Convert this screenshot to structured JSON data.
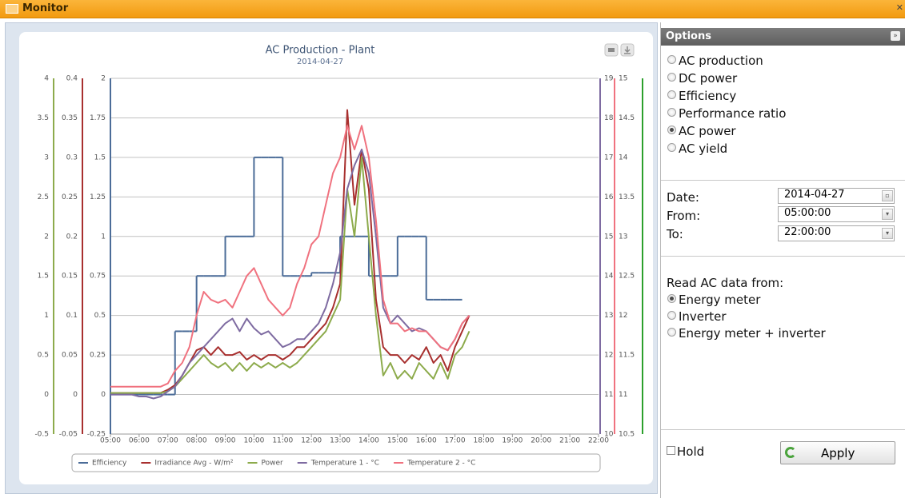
{
  "window": {
    "title": "Monitor"
  },
  "chart_data": {
    "type": "line",
    "title": "AC Production - Plant",
    "subtitle": "2014-04-27",
    "xlim": [
      "05:00",
      "22:00"
    ],
    "xticks": [
      "05:00",
      "06:00",
      "07:00",
      "08:00",
      "09:00",
      "10:00",
      "11:00",
      "12:00",
      "13:00",
      "14:00",
      "15:00",
      "16:00",
      "17:00",
      "18:00",
      "19:00",
      "20:00",
      "21:00",
      "22:00"
    ],
    "grid": true,
    "x": [
      "05:00",
      "05:15",
      "05:30",
      "05:45",
      "06:00",
      "06:15",
      "06:30",
      "06:45",
      "07:00",
      "07:15",
      "07:30",
      "07:45",
      "08:00",
      "08:15",
      "08:30",
      "08:45",
      "09:00",
      "09:15",
      "09:30",
      "09:45",
      "10:00",
      "10:15",
      "10:30",
      "10:45",
      "11:00",
      "11:15",
      "11:30",
      "11:45",
      "12:00",
      "12:15",
      "12:30",
      "12:45",
      "13:00",
      "13:15",
      "13:30",
      "13:45",
      "14:00",
      "14:15",
      "14:30",
      "14:45",
      "15:00",
      "15:15",
      "15:30",
      "15:45",
      "16:00",
      "16:15",
      "16:30",
      "16:45",
      "17:00",
      "17:15",
      "17:30"
    ],
    "series": [
      {
        "name": "Efficiency",
        "color": "#4b6c98",
        "side": "left",
        "step": true,
        "ylim": [
          -0.25,
          2
        ],
        "yticks": [
          -0.25,
          0,
          0.25,
          0.5,
          0.75,
          1,
          1.25,
          1.5,
          1.75,
          2
        ],
        "values": [
          0,
          0,
          0,
          0,
          0,
          0,
          0,
          0,
          0,
          0.4,
          0.4,
          0.4,
          0.75,
          0.75,
          0.75,
          0.75,
          1,
          1,
          1,
          1,
          1.5,
          1.5,
          1.5,
          1.5,
          0.75,
          0.75,
          0.75,
          0.75,
          0.77,
          0.77,
          0.77,
          0.77,
          1,
          1,
          1,
          1,
          0.75,
          0.75,
          0.75,
          0.75,
          1,
          1,
          1,
          1,
          0.6,
          0.6,
          0.6,
          0.6,
          0.6,
          null,
          null
        ]
      },
      {
        "name": "Irradiance Avg - W/m²",
        "color": "#a8302f",
        "side": "left",
        "ylim": [
          -0.05,
          0.4
        ],
        "yticks": [
          -0.05,
          0,
          0.05,
          0.1,
          0.15,
          0.2,
          0.25,
          0.3,
          0.35,
          0.4
        ],
        "values": [
          0.002,
          0.002,
          0.002,
          0.002,
          0.002,
          0.002,
          0.002,
          0.002,
          0.006,
          0.012,
          0.024,
          0.04,
          0.056,
          0.06,
          0.05,
          0.06,
          0.05,
          0.05,
          0.054,
          0.044,
          0.05,
          0.044,
          0.05,
          0.05,
          0.044,
          0.05,
          0.06,
          0.06,
          0.07,
          0.08,
          0.09,
          0.11,
          0.14,
          0.36,
          0.24,
          0.31,
          0.26,
          0.12,
          0.06,
          0.05,
          0.05,
          0.04,
          0.05,
          0.044,
          0.06,
          0.04,
          0.05,
          0.03,
          0.06,
          0.08,
          0.1
        ]
      },
      {
        "name": "Power",
        "color": "#8dab4c",
        "side": "left",
        "ylim": [
          -0.5,
          4
        ],
        "yticks": [
          -0.5,
          0,
          0.5,
          1,
          1.5,
          2,
          2.5,
          3,
          3.5,
          4
        ],
        "values": [
          0.02,
          0.02,
          0.02,
          0.02,
          0.02,
          0.02,
          0.02,
          0.02,
          0.04,
          0.1,
          0.2,
          0.3,
          0.4,
          0.5,
          0.4,
          0.34,
          0.4,
          0.3,
          0.4,
          0.3,
          0.4,
          0.34,
          0.4,
          0.34,
          0.4,
          0.34,
          0.4,
          0.5,
          0.6,
          0.7,
          0.8,
          1.0,
          1.2,
          2.6,
          2.0,
          3.0,
          2.0,
          1.0,
          0.24,
          0.4,
          0.2,
          0.3,
          0.2,
          0.4,
          0.3,
          0.2,
          0.4,
          0.2,
          0.5,
          0.6,
          0.8
        ]
      },
      {
        "name": "Temperature 1 - °C",
        "color": "#7e6ba1",
        "side": "right",
        "ylim": [
          10,
          19
        ],
        "yticks": [
          10,
          11,
          12,
          13,
          14,
          15,
          16,
          17,
          18,
          19
        ],
        "values": [
          11,
          11,
          11,
          11,
          10.95,
          10.95,
          10.9,
          10.95,
          11.08,
          11.2,
          11.48,
          11.8,
          12,
          12.2,
          12.4,
          12.6,
          12.8,
          12.92,
          12.6,
          12.92,
          12.68,
          12.52,
          12.6,
          12.4,
          12.2,
          12.28,
          12.4,
          12.4,
          12.6,
          12.8,
          13.2,
          13.8,
          14.6,
          16.2,
          16.8,
          17.2,
          16.6,
          15,
          13.2,
          12.8,
          13,
          12.8,
          12.6,
          12.68,
          12.6,
          12.4,
          12.2,
          12.12,
          12.4,
          12.8,
          13
        ]
      },
      {
        "name": "Temperature 2 - °C",
        "color": "#f0727f",
        "side": "right",
        "ylim": [
          10.5,
          15
        ],
        "yticks": [
          10.5,
          11,
          11.5,
          12,
          12.5,
          13,
          13.5,
          14,
          14.5,
          15
        ],
        "values": [
          11.1,
          11.1,
          11.1,
          11.1,
          11.1,
          11.1,
          11.1,
          11.1,
          11.14,
          11.3,
          11.4,
          11.6,
          12,
          12.3,
          12.2,
          12.16,
          12.2,
          12.1,
          12.3,
          12.5,
          12.6,
          12.4,
          12.2,
          12.1,
          12,
          12.1,
          12.4,
          12.6,
          12.9,
          13,
          13.4,
          13.8,
          14,
          14.4,
          14.1,
          14.4,
          14,
          13.2,
          12.2,
          11.9,
          11.9,
          11.8,
          11.84,
          11.8,
          11.8,
          11.7,
          11.6,
          11.56,
          11.7,
          11.9,
          12
        ]
      }
    ]
  },
  "options": {
    "title": "Options",
    "items": [
      {
        "label": "AC production",
        "checked": false
      },
      {
        "label": "DC power",
        "checked": false
      },
      {
        "label": "Efficiency",
        "checked": false
      },
      {
        "label": "Performance ratio",
        "checked": false
      },
      {
        "label": "AC power",
        "checked": true
      },
      {
        "label": "AC yield",
        "checked": false
      }
    ]
  },
  "range": {
    "date_label": "Date:",
    "date": "2014-04-27",
    "from_label": "From:",
    "from": "05:00:00",
    "to_label": "To:",
    "to": "22:00:00"
  },
  "source": {
    "label": "Read AC data from:",
    "items": [
      {
        "label": "Energy meter",
        "checked": true
      },
      {
        "label": "Inverter",
        "checked": false
      },
      {
        "label": "Energy meter + inverter",
        "checked": false
      }
    ]
  },
  "hold": {
    "label": "Hold",
    "checked": false
  },
  "apply": "Apply"
}
